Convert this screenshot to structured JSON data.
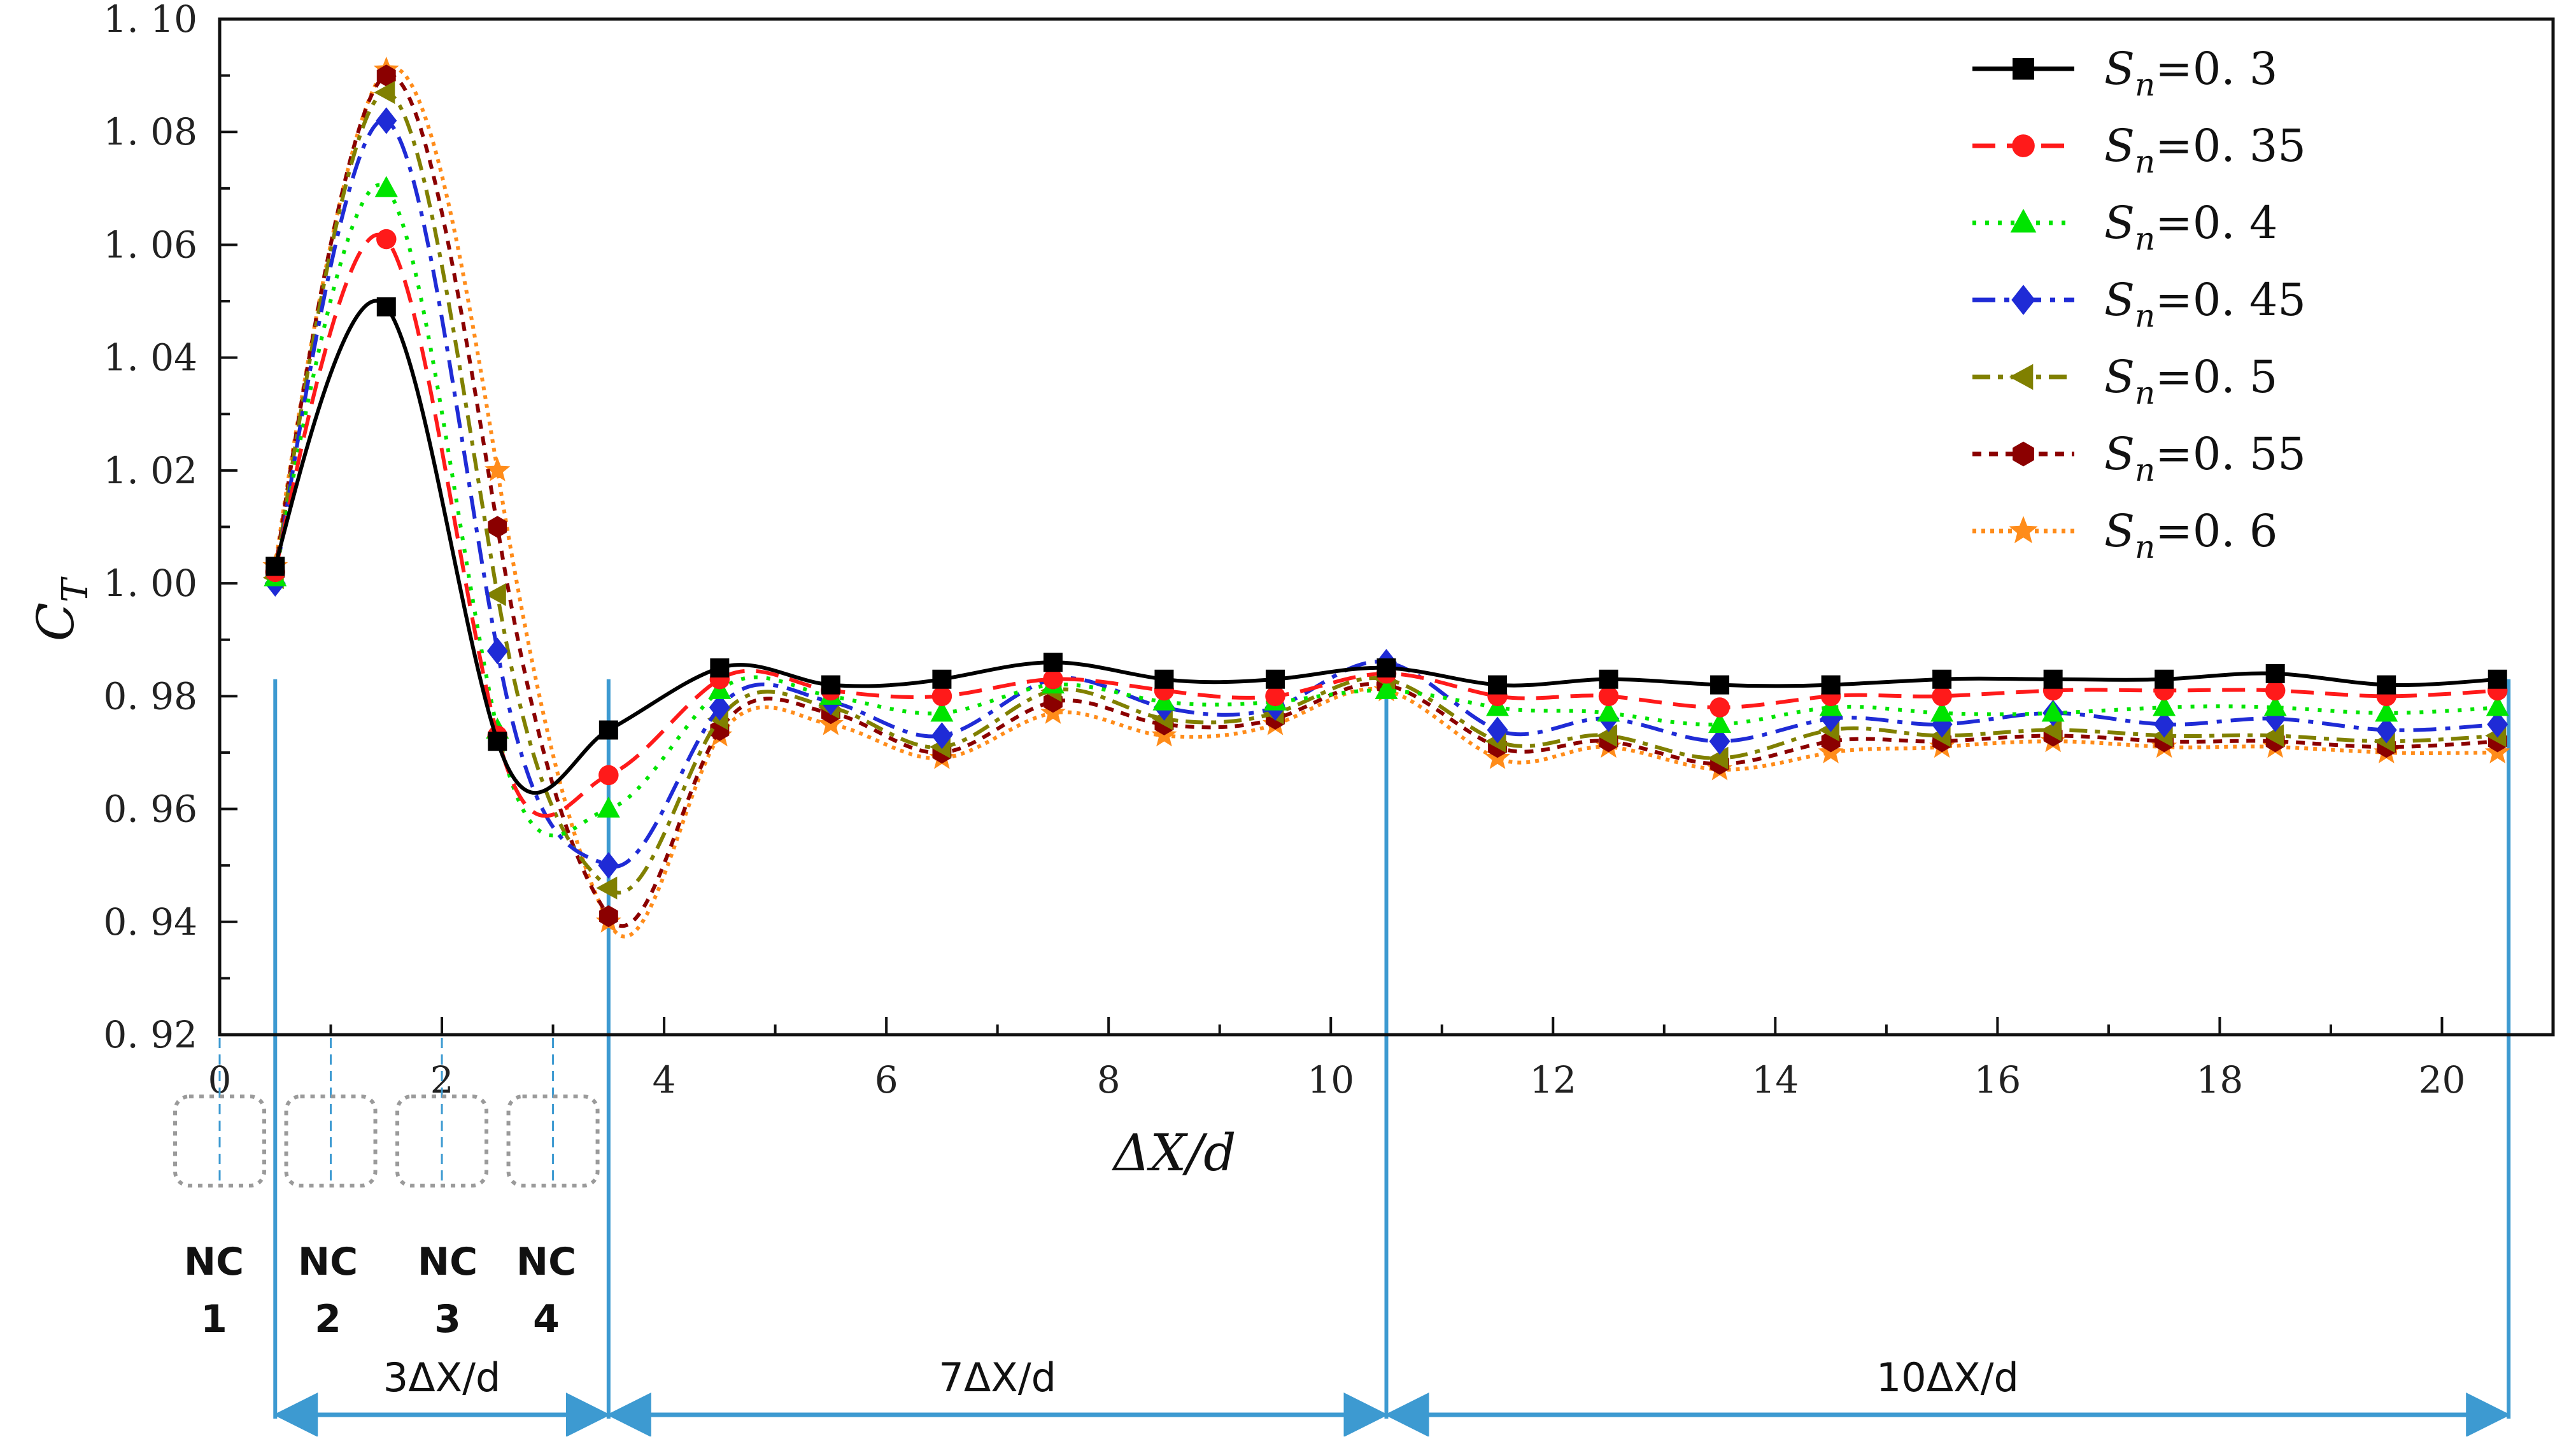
{
  "chart_data": {
    "type": "line",
    "xlabel": "ΔX/d",
    "ylabel": "C",
    "ylabel_sub": "T",
    "xlim": [
      0,
      21
    ],
    "ylim": [
      0.92,
      1.1
    ],
    "x_ticks": [
      0,
      2,
      4,
      6,
      8,
      10,
      12,
      14,
      16,
      18,
      20
    ],
    "x_tick_labels": [
      "0",
      "2",
      "4",
      "6",
      "8",
      "10",
      "12",
      "14",
      "16",
      "18",
      "20"
    ],
    "y_ticks": [
      0.92,
      0.94,
      0.96,
      0.98,
      1.0,
      1.02,
      1.04,
      1.06,
      1.08,
      1.1
    ],
    "y_tick_labels": [
      "0. 92",
      "0. 94",
      "0. 96",
      "0. 98",
      "1. 00",
      "1. 02",
      "1. 04",
      "1. 06",
      "1. 08",
      "1. 10"
    ],
    "grid": false,
    "legend_position": "top-right",
    "x": [
      0.5,
      1.5,
      2.5,
      3.5,
      4.5,
      5.5,
      6.5,
      7.5,
      8.5,
      9.5,
      10.5,
      11.5,
      12.5,
      13.5,
      14.5,
      15.5,
      16.5,
      17.5,
      18.5,
      19.5,
      20.5
    ],
    "series": [
      {
        "name": "Sn=0. 3",
        "sub_prefix": "S",
        "sub": "n",
        "suffix": "=0. 3",
        "color": "#000000",
        "dash": "",
        "marker": "square",
        "values": [
          1.003,
          1.049,
          0.972,
          0.974,
          0.985,
          0.982,
          0.983,
          0.986,
          0.983,
          0.983,
          0.985,
          0.982,
          0.983,
          0.982,
          0.982,
          0.983,
          0.983,
          0.983,
          0.984,
          0.982,
          0.983
        ]
      },
      {
        "name": "Sn=0. 35",
        "sub_prefix": "S",
        "sub": "n",
        "suffix": "=0. 35",
        "color": "#ff1a1a",
        "dash": "36,18",
        "marker": "circle",
        "values": [
          1.002,
          1.061,
          0.973,
          0.966,
          0.983,
          0.981,
          0.98,
          0.983,
          0.981,
          0.98,
          0.984,
          0.98,
          0.98,
          0.978,
          0.98,
          0.98,
          0.981,
          0.981,
          0.981,
          0.98,
          0.981
        ]
      },
      {
        "name": "Sn=0. 4",
        "sub_prefix": "S",
        "sub": "n",
        "suffix": "=0. 4",
        "color": "#00e400",
        "dash": "6,14",
        "marker": "triangle-up",
        "values": [
          1.001,
          1.07,
          0.974,
          0.96,
          0.981,
          0.98,
          0.977,
          0.982,
          0.979,
          0.979,
          0.981,
          0.978,
          0.977,
          0.975,
          0.978,
          0.977,
          0.977,
          0.978,
          0.978,
          0.977,
          0.978
        ]
      },
      {
        "name": "Sn=0. 45",
        "sub_prefix": "S",
        "sub": "n",
        "suffix": "=0. 45",
        "color": "#1f2bd6",
        "dash": "36,14,8,14",
        "marker": "diamond",
        "values": [
          1.0,
          1.082,
          0.988,
          0.95,
          0.978,
          0.979,
          0.973,
          0.983,
          0.978,
          0.978,
          0.986,
          0.974,
          0.976,
          0.972,
          0.976,
          0.975,
          0.977,
          0.975,
          0.976,
          0.974,
          0.975
        ]
      },
      {
        "name": "Sn=0. 5",
        "sub_prefix": "S",
        "sub": "n",
        "suffix": "=0. 5",
        "color": "#808000",
        "dash": "28,12,8,12",
        "marker": "triangle-left",
        "values": [
          1.001,
          1.087,
          0.998,
          0.946,
          0.976,
          0.978,
          0.971,
          0.981,
          0.976,
          0.977,
          0.983,
          0.972,
          0.973,
          0.969,
          0.974,
          0.973,
          0.974,
          0.973,
          0.973,
          0.972,
          0.973
        ]
      },
      {
        "name": "Sn=0. 55",
        "sub_prefix": "S",
        "sub": "n",
        "suffix": "=0. 55",
        "color": "#8b0000",
        "dash": "14,12",
        "marker": "hexagon",
        "values": [
          1.002,
          1.09,
          1.01,
          0.941,
          0.974,
          0.977,
          0.97,
          0.979,
          0.975,
          0.976,
          0.982,
          0.971,
          0.972,
          0.968,
          0.972,
          0.972,
          0.973,
          0.972,
          0.972,
          0.971,
          0.972
        ]
      },
      {
        "name": "Sn=0. 6",
        "sub_prefix": "S",
        "sub": "n",
        "suffix": "=0. 6",
        "color": "#ff8c1a",
        "dash": "6,8",
        "marker": "star",
        "values": [
          1.003,
          1.091,
          1.02,
          0.94,
          0.973,
          0.975,
          0.969,
          0.977,
          0.973,
          0.975,
          0.981,
          0.969,
          0.971,
          0.967,
          0.97,
          0.971,
          0.972,
          0.971,
          0.971,
          0.97,
          0.97
        ]
      }
    ],
    "nacelles": [
      {
        "x": 0,
        "label_line1": "NC",
        "label_line2": "1"
      },
      {
        "x": 1,
        "label_line1": "NC",
        "label_line2": "2"
      },
      {
        "x": 2,
        "label_line1": "NC",
        "label_line2": "3"
      },
      {
        "x": 3,
        "label_line1": "NC",
        "label_line2": "4"
      }
    ],
    "regions": [
      {
        "from": 0.5,
        "to": 3.5,
        "label": "3ΔX/d"
      },
      {
        "from": 3.5,
        "to": 10.5,
        "label": "7ΔX/d"
      },
      {
        "from": 10.5,
        "to": 20.6,
        "label": "10ΔX/d"
      }
    ],
    "region_divider_x": [
      0.5,
      3.5,
      10.5,
      20.6
    ],
    "accent_color": "#3d9ad1"
  }
}
